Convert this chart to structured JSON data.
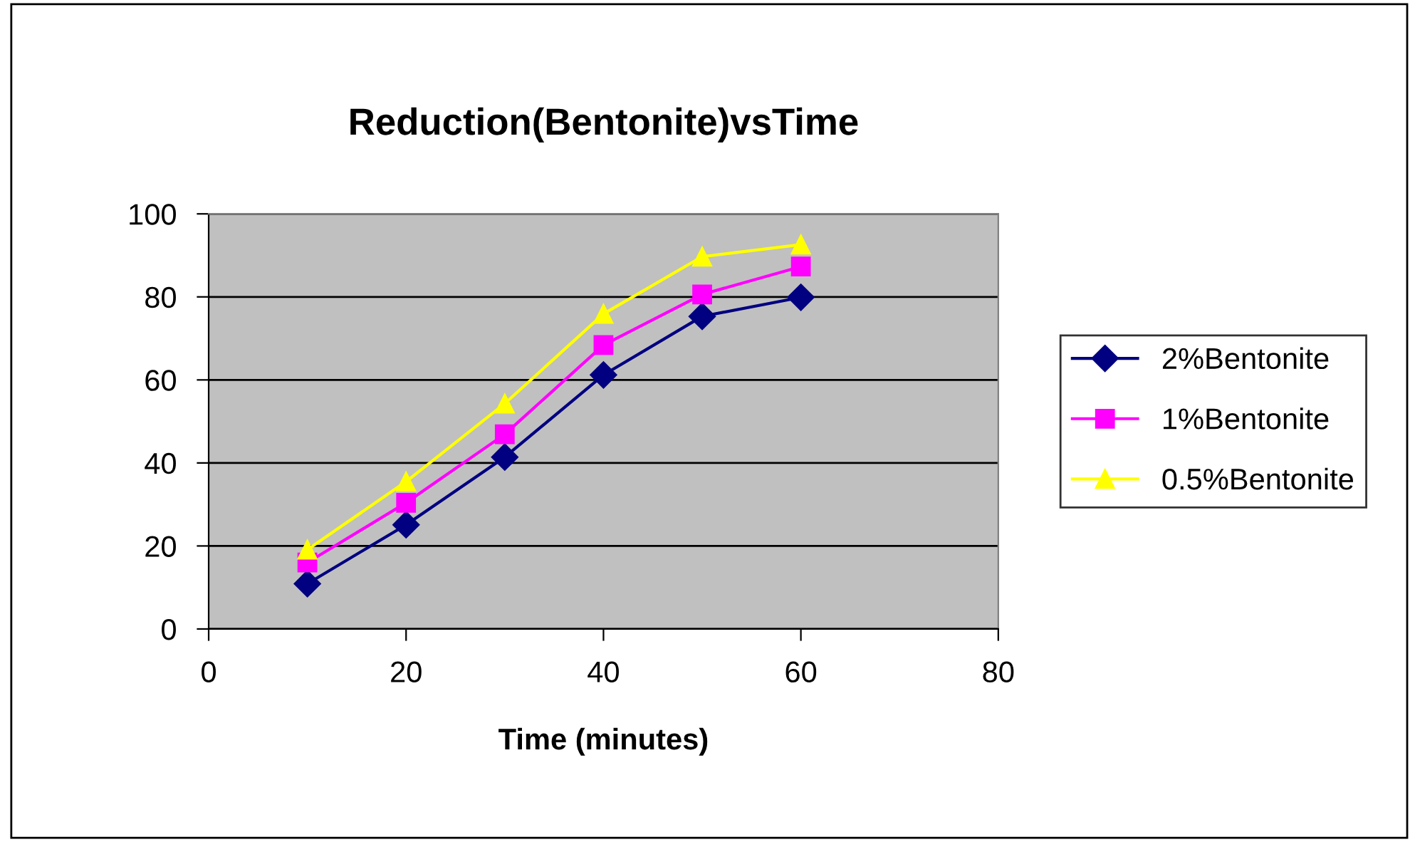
{
  "chart_data": {
    "type": "line",
    "title": "Reduction(Bentonite)vsTime",
    "xlabel": "Time (minutes)",
    "x": [
      10,
      20,
      30,
      40,
      50,
      60
    ],
    "series": [
      {
        "name": "2%Bentonite",
        "color": "#000080",
        "marker": "diamond",
        "values": [
          10.9,
          25.1,
          41.4,
          61.2,
          75.3,
          79.9
        ]
      },
      {
        "name": "1%Bentonite",
        "color": "#ff00ff",
        "marker": "square",
        "values": [
          16,
          30.4,
          46.9,
          68.4,
          80.6,
          87.3
        ]
      },
      {
        "name": "0.5%Bentonite",
        "color": "#ffff00",
        "marker": "triangle",
        "values": [
          19.1,
          35.5,
          54.3,
          75.9,
          89.7,
          92.6
        ]
      }
    ],
    "xlim": [
      0,
      80
    ],
    "xticks": [
      0,
      20,
      40,
      60,
      80
    ],
    "ylim": [
      0,
      100
    ],
    "yticks": [
      0,
      20,
      40,
      60,
      80,
      100
    ],
    "grid": "y",
    "legend": "right",
    "line_style": "solid"
  }
}
